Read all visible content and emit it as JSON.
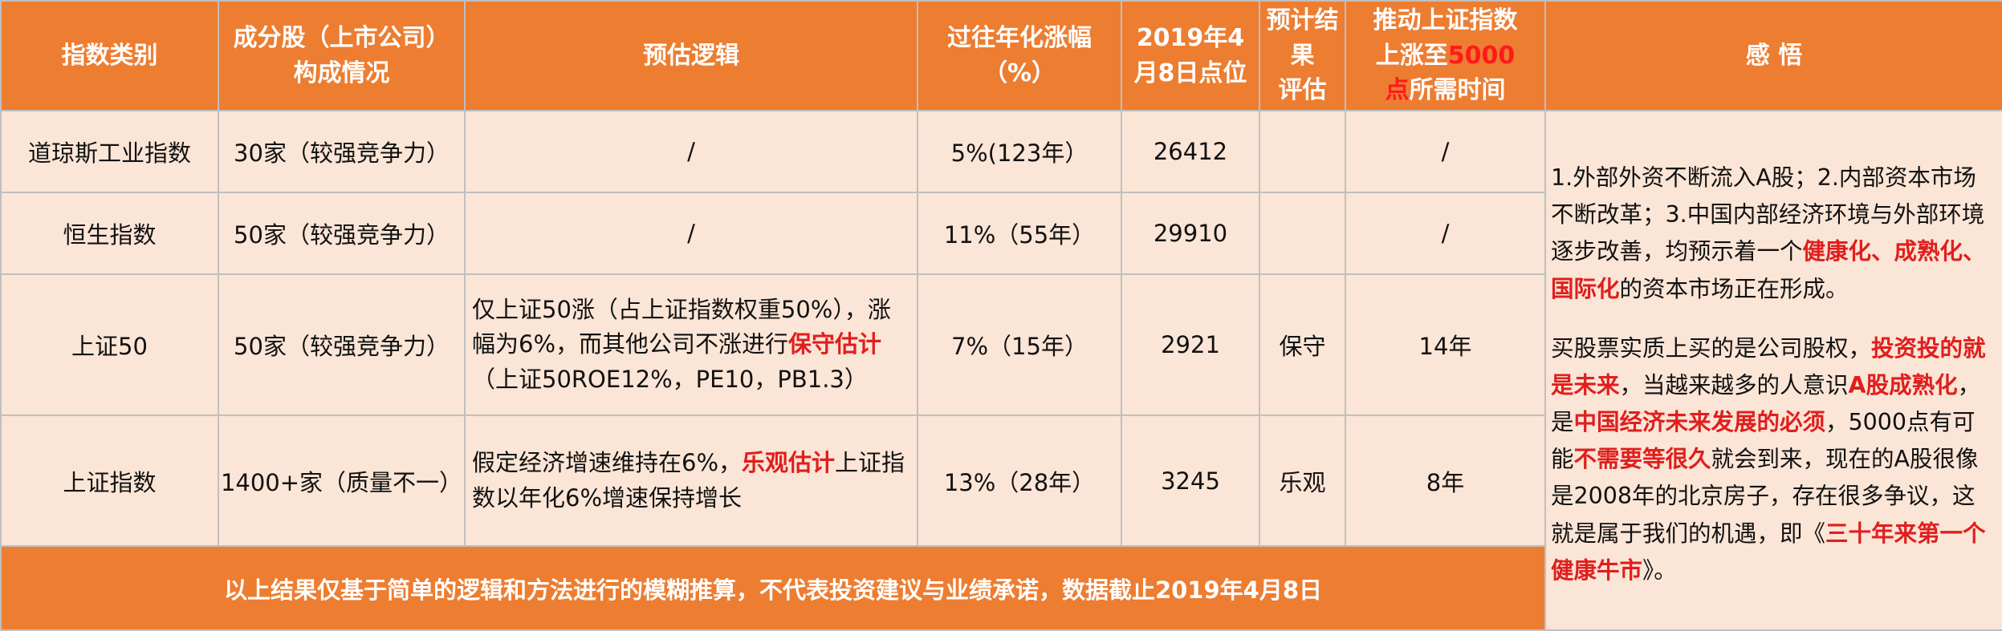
{
  "headers": {
    "category": "指数类别",
    "constituents_l1": "成分股（上市公司）",
    "constituents_l2": "构成情况",
    "logic": "预估逻辑",
    "growth_l1": "过往年化涨幅",
    "growth_l2": "（%）",
    "points_l1": "2019年4",
    "points_l2": "月8日点位",
    "assessment_l1": "预计结果",
    "assessment_l2": "评估",
    "time_l1": "推动上证指数",
    "time_l2a": "上涨至",
    "time_l2b": "5000",
    "time_l3a": "点",
    "time_l3b": "所需时间",
    "insight": "感  悟"
  },
  "rows": [
    {
      "category": "道琼斯工业指数",
      "constituents": "30家（较强竞争力）",
      "logic": "/",
      "growth": "5%(123年）",
      "points": "26412",
      "assessment": "",
      "time": "/"
    },
    {
      "category": "恒生指数",
      "constituents": "50家（较强竞争力）",
      "logic": "/",
      "growth": "11%（55年）",
      "points": "29910",
      "assessment": "",
      "time": "/"
    },
    {
      "category": "上证50",
      "constituents": "50家（较强竞争力）",
      "logic_a": "仅上证50涨（占上证指数权重50%），涨幅为6%，而其他公司不涨进行",
      "logic_b": "保守估计",
      "logic_c": "（上证50ROE12%，PE10，PB1.3）",
      "growth": "7%（15年）",
      "points": "2921",
      "assessment": "保守",
      "time": "14年"
    },
    {
      "category": "上证指数",
      "constituents": "1400+家（质量不一）",
      "logic_a": "假定经济增速维持在6%，",
      "logic_b": "乐观估计",
      "logic_c": "上证指数以年化6%增速保持增长",
      "growth": "13%（28年）",
      "points": "3245",
      "assessment": "乐观",
      "time": "8年"
    }
  ],
  "insight": {
    "p1_a": "1.外部外资不断流入A股；2.内部资本市场不断改革；3.中国内部经济环境与外部环境逐步改善，均预示着一个",
    "p1_b": "健康化、成熟化、国际化",
    "p1_c": "的资本市场正在形成。",
    "p2_a": "买股票实质上买的是公司股权，",
    "p2_b": "投资投的就是未来",
    "p2_c": "，当越来越多的人意识",
    "p2_d": "A股成熟化",
    "p2_e": "，是",
    "p2_f": "中国经济未来发展的必须",
    "p2_g": "，5000点有可能",
    "p2_h": "不需要等很久",
    "p2_i": "就会到来，现在的A股很像是2008年的北京房子，存在很多争议，这就是属于我们的机遇，即《",
    "p2_j": "三十年来第一个健康牛市",
    "p2_k": "》。"
  },
  "footer": "以上结果仅基于简单的逻辑和方法进行的模糊推算，不代表投资建议与业绩承诺，数据截止2019年4月8日",
  "colors": {
    "header_bg": "#ed7d31",
    "cell_bg": "#fbe5d6",
    "highlight_red": "#e01e1e"
  }
}
